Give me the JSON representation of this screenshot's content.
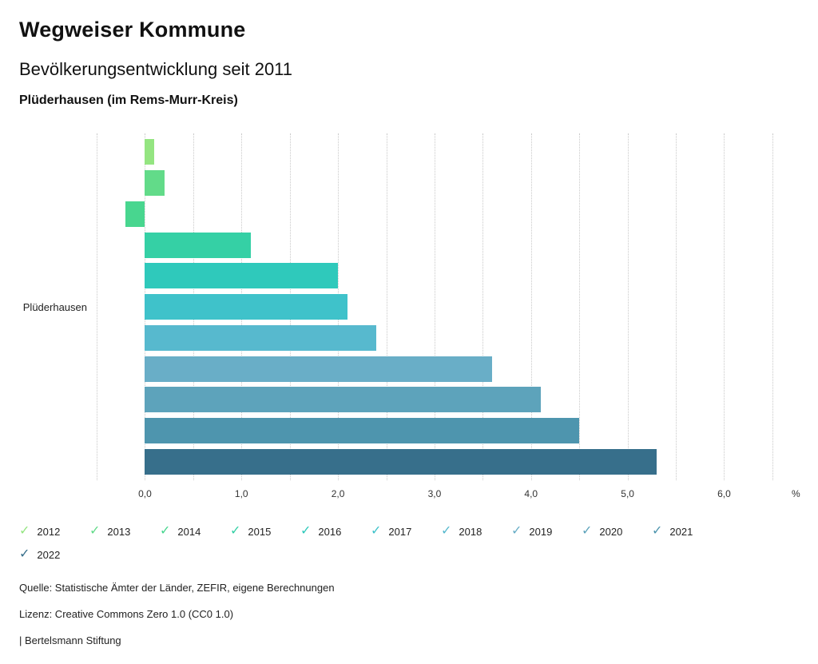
{
  "header": {
    "title": "Wegweiser Kommune",
    "subtitle": "Bevölkerungsentwicklung seit 2011",
    "region": "Plüderhausen (im Rems-Murr-Kreis)"
  },
  "chart_data": {
    "type": "bar",
    "orientation": "horizontal",
    "title": "Bevölkerungsentwicklung seit 2011",
    "group_label": "Plüderhausen",
    "categories": [
      "2012",
      "2013",
      "2014",
      "2015",
      "2016",
      "2017",
      "2018",
      "2019",
      "2020",
      "2021",
      "2022"
    ],
    "values": [
      0.1,
      0.2,
      -0.2,
      1.1,
      2.0,
      2.1,
      2.4,
      3.6,
      4.1,
      4.5,
      5.3
    ],
    "colors": [
      "#94E581",
      "#62DB89",
      "#48D68F",
      "#35D0A5",
      "#2FC9BB",
      "#3FC2CA",
      "#57B9CE",
      "#69AEC7",
      "#5DA3BB",
      "#4E95AE",
      "#376F8B"
    ],
    "xlim": [
      -0.5,
      6.65
    ],
    "grid_step": 0.5,
    "grid": true,
    "xticks": [
      0,
      1,
      2,
      3,
      4,
      5,
      6
    ],
    "xtick_labels": [
      "0,0",
      "1,0",
      "2,0",
      "3,0",
      "4,0",
      "5,0",
      "6,0"
    ],
    "unit_label": "%",
    "legend_position": "bottom"
  },
  "legend": {
    "check_glyph": "✓"
  },
  "footer": {
    "source": "Quelle: Statistische Ämter der Länder, ZEFIR, eigene Berechnungen",
    "license": "Lizenz: Creative Commons Zero 1.0 (CC0 1.0)",
    "attribution": "| Bertelsmann Stiftung"
  }
}
